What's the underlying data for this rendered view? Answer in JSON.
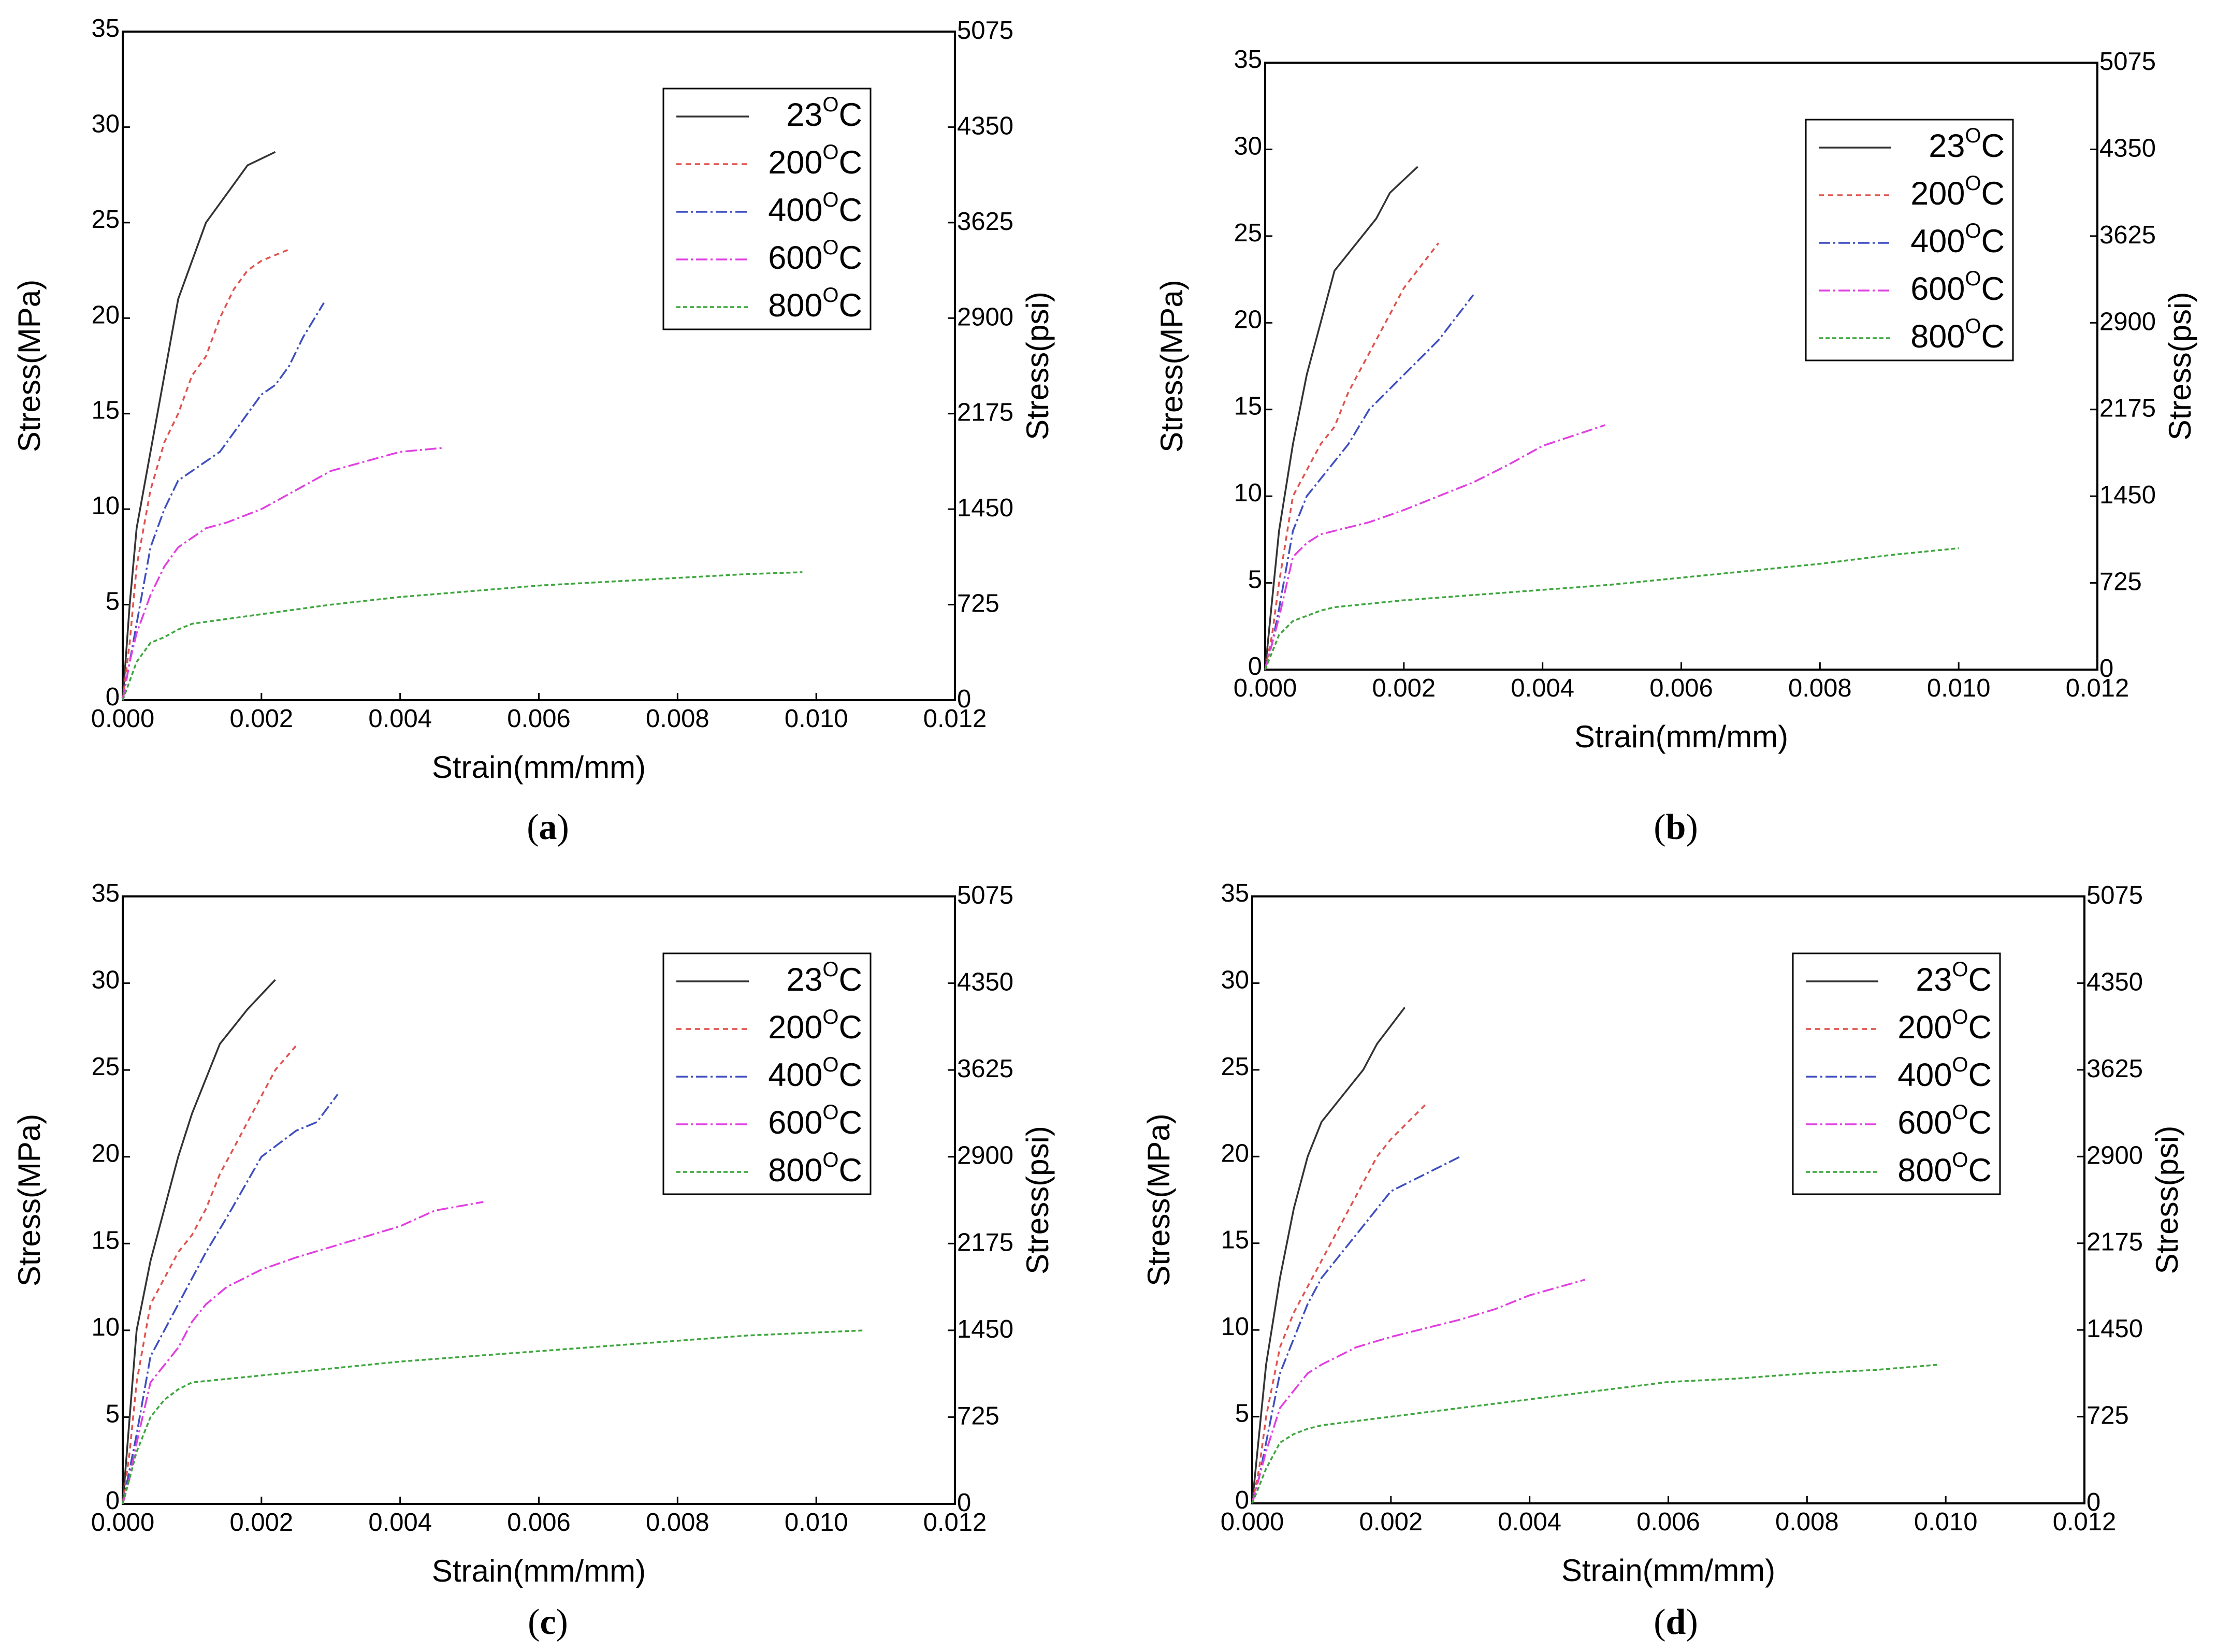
{
  "chart_data": [
    {
      "panel": "a",
      "type": "line",
      "caption": {
        "open": "(",
        "letter": "a",
        "close": ")"
      },
      "xlabel": "Strain(mm/mm)",
      "ylabel": "Stress(MPa)",
      "y2label": "Stress(psi)",
      "xlim": [
        0,
        0.012
      ],
      "ylim": [
        0,
        35
      ],
      "x_ticks": [
        "0.000",
        "0.002",
        "0.004",
        "0.006",
        "0.008",
        "0.010",
        "0.012"
      ],
      "y_ticks": [
        "0",
        "5",
        "10",
        "15",
        "20",
        "25",
        "30",
        "35"
      ],
      "y2_ticks": [
        "0",
        "725",
        "1450",
        "2175",
        "2900",
        "3625",
        "4350",
        "5075"
      ],
      "legend_position": "top-right",
      "series": [
        {
          "name": "23",
          "unit": "C",
          "color": "#333333",
          "dash": "",
          "x": [
            0,
            0.0001,
            0.0002,
            0.0004,
            0.0006,
            0.0008,
            0.001,
            0.0012,
            0.0014,
            0.0016,
            0.0018,
            0.0022
          ],
          "y": [
            0,
            5,
            9,
            13,
            17,
            21,
            23,
            25,
            26,
            27,
            28,
            28.7
          ]
        },
        {
          "name": "200",
          "unit": "C",
          "color": "#e0524e",
          "dash": "10 8",
          "x": [
            0,
            0.0001,
            0.0002,
            0.0004,
            0.0006,
            0.0008,
            0.001,
            0.0012,
            0.0014,
            0.0016,
            0.0018,
            0.002,
            0.0024
          ],
          "y": [
            0,
            3,
            7,
            11,
            13.5,
            15,
            17,
            18,
            20,
            21.5,
            22.5,
            23,
            23.6
          ]
        },
        {
          "name": "400",
          "unit": "C",
          "color": "#3f4fc0",
          "dash": "22 6 4 6",
          "x": [
            0,
            0.0001,
            0.0002,
            0.0004,
            0.0006,
            0.0008,
            0.001,
            0.0012,
            0.0014,
            0.0016,
            0.0018,
            0.002,
            0.0022,
            0.0024,
            0.0026,
            0.0029
          ],
          "y": [
            0,
            2,
            4,
            8,
            10,
            11.5,
            12,
            12.5,
            13,
            14,
            15,
            16,
            16.5,
            17.5,
            19,
            20.8
          ]
        },
        {
          "name": "600",
          "unit": "C",
          "color": "#e040e0",
          "dash": "22 6 4 6",
          "x": [
            0,
            0.0001,
            0.0002,
            0.0004,
            0.0006,
            0.0008,
            0.001,
            0.0012,
            0.0015,
            0.002,
            0.0025,
            0.003,
            0.0035,
            0.004,
            0.0046
          ],
          "y": [
            0,
            2,
            3.5,
            5.5,
            7,
            8,
            8.5,
            9,
            9.3,
            10,
            11,
            12,
            12.5,
            13,
            13.2
          ]
        },
        {
          "name": "800",
          "unit": "C",
          "color": "#3fa63f",
          "dash": "8 5",
          "x": [
            0,
            0.0001,
            0.0002,
            0.0004,
            0.0006,
            0.0008,
            0.001,
            0.002,
            0.003,
            0.004,
            0.005,
            0.006,
            0.007,
            0.008,
            0.009,
            0.0098
          ],
          "y": [
            0,
            1,
            2,
            3,
            3.3,
            3.7,
            4,
            4.5,
            5,
            5.4,
            5.7,
            6,
            6.2,
            6.4,
            6.6,
            6.7
          ]
        }
      ]
    },
    {
      "panel": "b",
      "type": "line",
      "caption": {
        "open": "(",
        "letter": "b",
        "close": ")"
      },
      "xlabel": "Strain(mm/mm)",
      "ylabel": "Stress(MPa)",
      "y2label": "Stress(psi)",
      "xlim": [
        0,
        0.012
      ],
      "ylim": [
        0,
        35
      ],
      "x_ticks": [
        "0.000",
        "0.002",
        "0.004",
        "0.006",
        "0.008",
        "0.010",
        "0.012"
      ],
      "y_ticks": [
        "0",
        "5",
        "10",
        "15",
        "20",
        "25",
        "30",
        "35"
      ],
      "y2_ticks": [
        "0",
        "725",
        "1450",
        "2175",
        "2900",
        "3625",
        "4350",
        "5075"
      ],
      "legend_position": "top-right",
      "series": [
        {
          "name": "23",
          "unit": "C",
          "color": "#333333",
          "dash": "",
          "x": [
            0,
            0.0001,
            0.0002,
            0.0004,
            0.0006,
            0.0008,
            0.001,
            0.0012,
            0.0014,
            0.0016,
            0.0018,
            0.0022
          ],
          "y": [
            0,
            4,
            8,
            13,
            17,
            20,
            23,
            24,
            25,
            26,
            27.5,
            29
          ]
        },
        {
          "name": "200",
          "unit": "C",
          "color": "#e0524e",
          "dash": "10 8",
          "x": [
            0,
            0.0001,
            0.0002,
            0.0004,
            0.0006,
            0.0008,
            0.001,
            0.0012,
            0.0014,
            0.0016,
            0.0018,
            0.002,
            0.0025
          ],
          "y": [
            0,
            2,
            5,
            10,
            11.5,
            13,
            14,
            16,
            17.5,
            19,
            20.5,
            22,
            24.6
          ]
        },
        {
          "name": "400",
          "unit": "C",
          "color": "#3f4fc0",
          "dash": "22 6 4 6",
          "x": [
            0,
            0.0001,
            0.0002,
            0.0004,
            0.0006,
            0.0008,
            0.001,
            0.0012,
            0.0015,
            0.002,
            0.0025,
            0.003
          ],
          "y": [
            0,
            1.5,
            3.5,
            8,
            10,
            11,
            12,
            13,
            15,
            17,
            19,
            21.6
          ]
        },
        {
          "name": "600",
          "unit": "C",
          "color": "#e040e0",
          "dash": "22 6 4 6",
          "x": [
            0,
            0.0001,
            0.0002,
            0.0004,
            0.0006,
            0.0008,
            0.001,
            0.0015,
            0.002,
            0.0025,
            0.003,
            0.0035,
            0.004,
            0.0049
          ],
          "y": [
            0,
            1.5,
            3,
            6.5,
            7.3,
            7.8,
            8,
            8.5,
            9.2,
            10,
            10.8,
            11.8,
            12.9,
            14.1
          ]
        },
        {
          "name": "800",
          "unit": "C",
          "color": "#3fa63f",
          "dash": "8 5",
          "x": [
            0,
            0.0001,
            0.0002,
            0.0004,
            0.0006,
            0.0008,
            0.001,
            0.002,
            0.003,
            0.004,
            0.005,
            0.006,
            0.007,
            0.008,
            0.009,
            0.01
          ],
          "y": [
            0,
            1,
            2,
            2.8,
            3.1,
            3.4,
            3.6,
            4,
            4.3,
            4.6,
            4.9,
            5.3,
            5.7,
            6.1,
            6.6,
            7
          ]
        }
      ]
    },
    {
      "panel": "c",
      "type": "line",
      "caption": {
        "open": "(",
        "letter": "c",
        "close": ")"
      },
      "xlabel": "Strain(mm/mm)",
      "ylabel": "Stress(MPa)",
      "y2label": "Stress(psi)",
      "xlim": [
        0,
        0.012
      ],
      "ylim": [
        0,
        35
      ],
      "x_ticks": [
        "0.000",
        "0.002",
        "0.004",
        "0.006",
        "0.008",
        "0.010",
        "0.012"
      ],
      "y_ticks": [
        "0",
        "5",
        "10",
        "15",
        "20",
        "25",
        "30",
        "35"
      ],
      "y2_ticks": [
        "0",
        "725",
        "1450",
        "2175",
        "2900",
        "3625",
        "4350",
        "5075"
      ],
      "legend_position": "top-right",
      "series": [
        {
          "name": "23",
          "unit": "C",
          "color": "#333333",
          "dash": "",
          "x": [
            0,
            0.0001,
            0.0002,
            0.0004,
            0.0006,
            0.0008,
            0.001,
            0.0012,
            0.0014,
            0.0016,
            0.0018,
            0.0022
          ],
          "y": [
            0,
            5,
            10,
            14,
            17,
            20,
            22.5,
            24.5,
            26.5,
            27.5,
            28.5,
            30.2
          ]
        },
        {
          "name": "200",
          "unit": "C",
          "color": "#e0524e",
          "dash": "10 8",
          "x": [
            0,
            0.0001,
            0.0002,
            0.0004,
            0.0006,
            0.0008,
            0.001,
            0.0012,
            0.0014,
            0.0016,
            0.0018,
            0.002,
            0.0022,
            0.0025
          ],
          "y": [
            0,
            3,
            7,
            11.5,
            13,
            14.5,
            15.5,
            17,
            19,
            20.5,
            22,
            23.5,
            25,
            26.4
          ]
        },
        {
          "name": "400",
          "unit": "C",
          "color": "#3f4fc0",
          "dash": "22 6 4 6",
          "x": [
            0,
            0.0001,
            0.0002,
            0.0004,
            0.0006,
            0.0008,
            0.001,
            0.0012,
            0.0015,
            0.002,
            0.0025,
            0.0028,
            0.0031
          ],
          "y": [
            0,
            2,
            4,
            8.5,
            10,
            11.5,
            13,
            14.5,
            16.5,
            20,
            21.5,
            22,
            23.6
          ]
        },
        {
          "name": "600",
          "unit": "C",
          "color": "#e040e0",
          "dash": "22 6 4 6",
          "x": [
            0,
            0.0001,
            0.0002,
            0.0004,
            0.0006,
            0.0008,
            0.001,
            0.0012,
            0.0015,
            0.002,
            0.0025,
            0.003,
            0.0035,
            0.004,
            0.0045,
            0.0052
          ],
          "y": [
            0,
            1.5,
            3.5,
            7,
            8,
            9,
            10.5,
            11.5,
            12.5,
            13.5,
            14.2,
            14.8,
            15.4,
            16,
            16.9,
            17.4
          ]
        },
        {
          "name": "800",
          "unit": "C",
          "color": "#3fa63f",
          "dash": "8 5",
          "x": [
            0,
            0.0001,
            0.0002,
            0.0004,
            0.0006,
            0.0008,
            0.001,
            0.0015,
            0.002,
            0.003,
            0.004,
            0.005,
            0.006,
            0.007,
            0.008,
            0.009,
            0.0107
          ],
          "y": [
            0,
            1.5,
            3,
            5,
            6,
            6.6,
            7,
            7.2,
            7.4,
            7.8,
            8.2,
            8.5,
            8.8,
            9.1,
            9.4,
            9.7,
            10
          ]
        }
      ]
    },
    {
      "panel": "d",
      "type": "line",
      "caption": {
        "open": "(",
        "letter": "d",
        "close": ")"
      },
      "xlabel": "Strain(mm/mm)",
      "ylabel": "Stress(MPa)",
      "y2label": "Stress(psi)",
      "xlim": [
        0,
        0.012
      ],
      "ylim": [
        0,
        35
      ],
      "x_ticks": [
        "0.000",
        "0.002",
        "0.004",
        "0.006",
        "0.008",
        "0.010",
        "0.012"
      ],
      "y_ticks": [
        "0",
        "5",
        "10",
        "15",
        "20",
        "25",
        "30",
        "35"
      ],
      "y2_ticks": [
        "0",
        "725",
        "1450",
        "2175",
        "2900",
        "3625",
        "4350",
        "5075"
      ],
      "legend_position": "top-right",
      "series": [
        {
          "name": "23",
          "unit": "C",
          "color": "#333333",
          "dash": "",
          "x": [
            0,
            0.0001,
            0.0002,
            0.0004,
            0.0006,
            0.0008,
            0.001,
            0.0012,
            0.0014,
            0.0016,
            0.0018,
            0.0022
          ],
          "y": [
            0,
            4,
            8,
            13,
            17,
            20,
            22,
            23,
            24,
            25,
            26.5,
            28.6
          ]
        },
        {
          "name": "200",
          "unit": "C",
          "color": "#e0524e",
          "dash": "10 8",
          "x": [
            0,
            0.0001,
            0.0002,
            0.0004,
            0.0006,
            0.0008,
            0.001,
            0.0012,
            0.0014,
            0.0016,
            0.0018,
            0.002,
            0.0025
          ],
          "y": [
            0,
            2,
            5,
            9,
            11,
            12.5,
            14,
            15.5,
            17,
            18.5,
            20,
            21,
            23
          ]
        },
        {
          "name": "400",
          "unit": "C",
          "color": "#3f4fc0",
          "dash": "22 6 4 6",
          "x": [
            0,
            0.0001,
            0.0002,
            0.0004,
            0.0006,
            0.0008,
            0.001,
            0.0012,
            0.0015,
            0.002,
            0.0025,
            0.003
          ],
          "y": [
            0,
            1.5,
            3.5,
            7.5,
            9.5,
            11.5,
            13,
            14,
            15.5,
            18,
            19,
            20
          ]
        },
        {
          "name": "600",
          "unit": "C",
          "color": "#e040e0",
          "dash": "22 6 4 6",
          "x": [
            0,
            0.0001,
            0.0002,
            0.0004,
            0.0006,
            0.0008,
            0.001,
            0.0015,
            0.002,
            0.0025,
            0.003,
            0.0035,
            0.004,
            0.0048
          ],
          "y": [
            0,
            1.5,
            3,
            5.5,
            6.5,
            7.5,
            8,
            9,
            9.6,
            10.1,
            10.6,
            11.2,
            12,
            12.9
          ]
        },
        {
          "name": "800",
          "unit": "C",
          "color": "#3fa63f",
          "dash": "8 5",
          "x": [
            0,
            0.0001,
            0.0002,
            0.0004,
            0.0006,
            0.0008,
            0.001,
            0.002,
            0.003,
            0.004,
            0.005,
            0.006,
            0.007,
            0.008,
            0.009,
            0.0099
          ],
          "y": [
            0,
            1,
            2,
            3.5,
            4,
            4.3,
            4.5,
            5,
            5.5,
            6,
            6.5,
            7,
            7.2,
            7.5,
            7.7,
            8
          ]
        }
      ]
    }
  ]
}
